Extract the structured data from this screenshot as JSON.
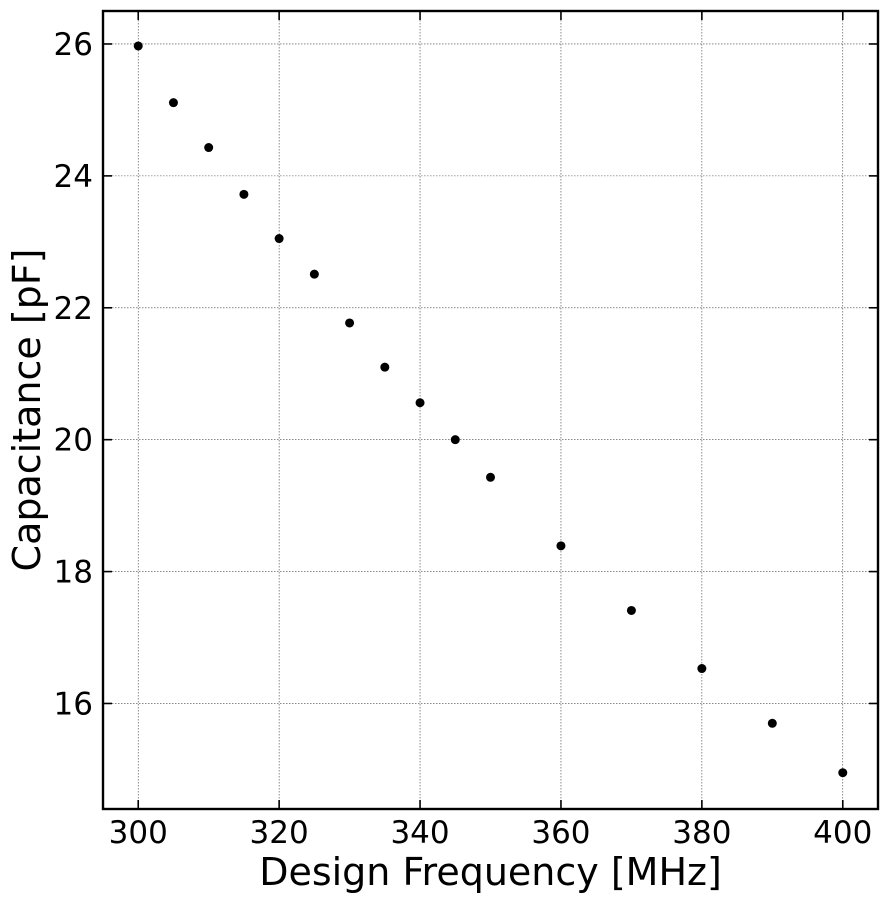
{
  "chart_data": {
    "type": "scatter",
    "title": "",
    "xlabel": "Design Frequency [MHz]",
    "ylabel": "Capacitance [pF]",
    "xlim": [
      295,
      405
    ],
    "ylim": [
      14.4,
      26.5
    ],
    "xticks": [
      300,
      320,
      340,
      360,
      380,
      400
    ],
    "yticks": [
      16,
      18,
      20,
      22,
      24,
      26
    ],
    "grid": true,
    "marker_color": "#000000",
    "series": [
      {
        "x": [
          300,
          305,
          310,
          315,
          320,
          325,
          330,
          335,
          340,
          345,
          350,
          360,
          370,
          380,
          390,
          400
        ],
        "y": [
          25.97,
          25.11,
          24.43,
          23.72,
          23.05,
          22.51,
          21.77,
          21.1,
          20.56,
          20.0,
          19.43,
          18.39,
          17.41,
          16.53,
          15.7,
          14.95
        ]
      }
    ]
  }
}
